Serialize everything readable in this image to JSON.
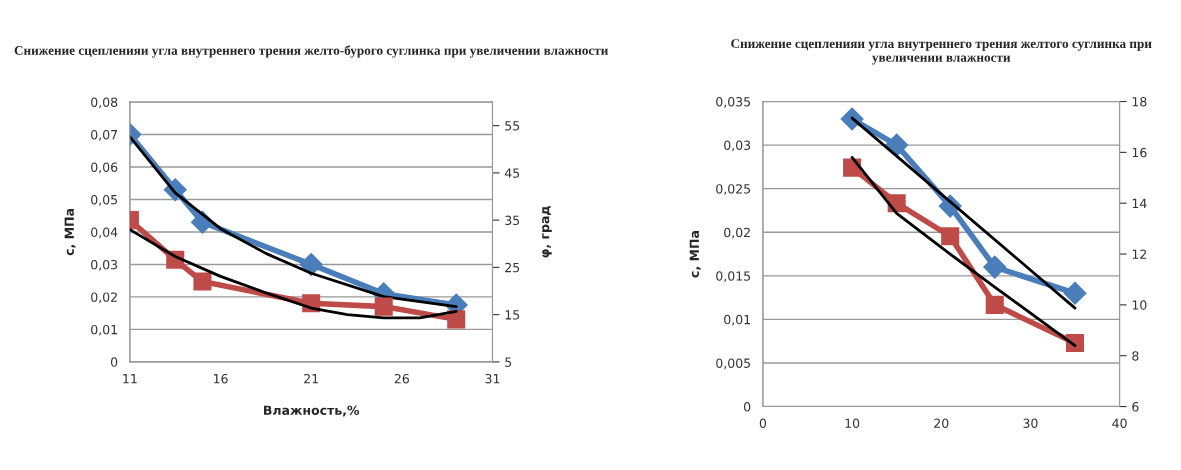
{
  "chart_data": [
    {
      "type": "line",
      "title": "Снижение сцепленияи угла внутреннего трения желто-бурого суглинка при увеличении влажности",
      "xlabel": "Влажность,%",
      "ylabel": "c, МПа",
      "y2label": "φ, град",
      "xlim": [
        11,
        31
      ],
      "xticks": [
        11,
        16,
        21,
        26,
        31
      ],
      "ylim": [
        0,
        0.08
      ],
      "yticks": [
        0,
        {
          "value": 0.01,
          "label": "0,01"
        },
        {
          "value": 0.02,
          "label": "0,02"
        },
        {
          "value": 0.03,
          "label": "0,03"
        },
        {
          "value": 0.04,
          "label": "0,04"
        },
        {
          "value": 0.05,
          "label": "0,05"
        },
        {
          "value": 0.06,
          "label": "0,06"
        },
        {
          "value": 0.07,
          "label": "0,07"
        },
        {
          "value": 0.08,
          "label": "0,08"
        }
      ],
      "y2lim": [
        5,
        60
      ],
      "y2ticks": [
        5,
        15,
        25,
        35,
        45,
        55
      ],
      "grid": "y",
      "legend": false,
      "series": [
        {
          "color": "#4a7ebb",
          "marker": "diamond",
          "x": [
            11,
            13.5,
            15,
            21,
            25,
            29
          ],
          "values": [
            0.07,
            0.053,
            0.043,
            0.03,
            0.021,
            0.0175
          ]
        },
        {
          "color": "#be4b48",
          "marker": "square",
          "axis": "y2",
          "x": [
            11,
            13.5,
            15,
            21,
            25,
            29
          ],
          "values": [
            35,
            26.6,
            22,
            17.4,
            16.7,
            14
          ]
        },
        {
          "color": "#000000",
          "marker": "none",
          "x": [
            11,
            13.5,
            16,
            18.5,
            21,
            25,
            29
          ],
          "values": [
            0.0693,
            0.052,
            0.041,
            0.0334,
            0.0273,
            0.0201,
            0.017
          ]
        },
        {
          "color": "#000000",
          "marker": "none",
          "axis": "y2",
          "x": [
            11,
            13.5,
            16,
            18.5,
            21,
            23,
            25,
            27,
            29
          ],
          "values": [
            33,
            27.3,
            23.1,
            19.6,
            16.4,
            15,
            14.3,
            14.3,
            15.7
          ]
        }
      ]
    },
    {
      "type": "line",
      "title": "Снижение сцепленияи угла внутреннего трения желтого суглинка при увеличении влажности",
      "ylabel": "c, МПа",
      "xlim": [
        0,
        40
      ],
      "xticks": [
        0,
        10,
        20,
        30,
        40
      ],
      "ylim": [
        0,
        0.035
      ],
      "yticks": [
        0,
        {
          "value": 0.005,
          "label": "0,005"
        },
        {
          "value": 0.01,
          "label": "0,01"
        },
        {
          "value": 0.015,
          "label": "0,015"
        },
        {
          "value": 0.02,
          "label": "0,02"
        },
        {
          "value": 0.025,
          "label": "0,025"
        },
        {
          "value": 0.03,
          "label": "0,03"
        },
        {
          "value": 0.035,
          "label": "0,035"
        }
      ],
      "y2lim": [
        6,
        18
      ],
      "y2ticks": [
        6,
        8,
        10,
        12,
        14,
        16,
        18
      ],
      "grid": "y",
      "legend": false,
      "series": [
        {
          "color": "#4a7ebb",
          "marker": "diamond",
          "x": [
            10,
            15,
            21,
            26,
            35
          ],
          "values": [
            0.033,
            0.03,
            0.023,
            0.016,
            0.013
          ]
        },
        {
          "color": "#be4b48",
          "marker": "square",
          "axis": "y2",
          "x": [
            10,
            15,
            21,
            26,
            35
          ],
          "values": [
            15.4,
            14,
            12.7,
            10,
            8.5
          ]
        },
        {
          "color": "#000000",
          "marker": "none",
          "x": [
            10,
            35
          ],
          "values": [
            0.0331,
            0.0113
          ]
        },
        {
          "color": "#000000",
          "marker": "none",
          "axis": "y2",
          "x": [
            10,
            15,
            21,
            26,
            35
          ],
          "values": [
            15.8,
            13.6,
            12,
            10.7,
            8.4
          ]
        }
      ]
    }
  ]
}
